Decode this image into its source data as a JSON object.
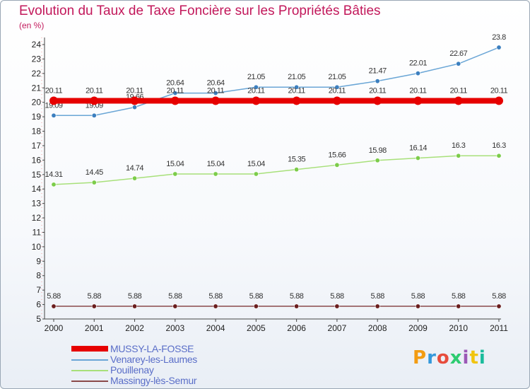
{
  "chart_data": {
    "type": "line",
    "title": "Evolution du Taux de Taxe Foncière sur les Propriétés Bâties",
    "unit_label": "(en %)",
    "xlabel": "",
    "ylabel": "",
    "ylim": [
      5,
      24
    ],
    "yticks": [
      5,
      6,
      7,
      8,
      9,
      10,
      11,
      12,
      13,
      14,
      15,
      16,
      17,
      18,
      19,
      20,
      21,
      22,
      23,
      24
    ],
    "x": [
      "2000",
      "2001",
      "2002",
      "2003",
      "2004",
      "2005",
      "2006",
      "2007",
      "2008",
      "2009",
      "2010",
      "2011"
    ],
    "series": [
      {
        "name": "Venarey-les-Laumes",
        "color": "#6aa6d6",
        "marker": "#3c7fbf",
        "width": 1.5,
        "msize": 3.2,
        "values": [
          19.09,
          19.09,
          19.66,
          20.64,
          20.64,
          21.05,
          21.05,
          21.05,
          21.47,
          22.01,
          22.67,
          23.8
        ],
        "labels": [
          "19.09",
          "19.09",
          "19.66",
          "20.64",
          "20.64",
          "21.05",
          "21.05",
          "21.05",
          "21.47",
          "22.01",
          "22.67",
          "23.8"
        ]
      },
      {
        "name": "Pouillenay",
        "color": "#a8e07a",
        "marker": "#7ccc4a",
        "width": 1.5,
        "msize": 3.2,
        "values": [
          14.31,
          14.45,
          14.74,
          15.04,
          15.04,
          15.04,
          15.35,
          15.66,
          15.98,
          16.14,
          16.3,
          16.3
        ],
        "labels": [
          "14.31",
          "14.45",
          "14.74",
          "15.04",
          "15.04",
          "15.04",
          "15.35",
          "15.66",
          "15.98",
          "16.14",
          "16.3",
          "16.3"
        ]
      },
      {
        "name": "Massingy-lès-Semur",
        "color": "#8a4a4a",
        "marker": "#6a1e1e",
        "width": 1.5,
        "msize": 3.2,
        "values": [
          5.88,
          5.88,
          5.88,
          5.88,
          5.88,
          5.88,
          5.88,
          5.88,
          5.88,
          5.88,
          5.88,
          5.88
        ],
        "labels": [
          "5.88",
          "5.88",
          "5.88",
          "5.88",
          "5.88",
          "5.88",
          "5.88",
          "5.88",
          "5.88",
          "5.88",
          "5.88",
          "5.88"
        ]
      },
      {
        "name": "MUSSY-LA-FOSSE",
        "color": "#e60000",
        "marker": "#e60000",
        "width": 8,
        "msize": 6,
        "values": [
          20.11,
          20.11,
          20.11,
          20.11,
          20.11,
          20.11,
          20.11,
          20.11,
          20.11,
          20.11,
          20.11,
          20.11
        ],
        "labels": [
          "20.11",
          "20.11",
          "20.11",
          "20.11",
          "20.11",
          "20.11",
          "20.11",
          "20.11",
          "20.11",
          "20.11",
          "20.11",
          "20.11"
        ]
      }
    ],
    "legend": {
      "position": "bottom-left",
      "order": [
        "MUSSY-LA-FOSSE",
        "Venarey-les-Laumes",
        "Pouillenay",
        "Massingy-lès-Semur"
      ]
    },
    "grid": false
  },
  "logo": {
    "text": "Proxiti",
    "colors": [
      "#f39c12",
      "#3498db",
      "#e74c3c",
      "#2ecc71",
      "#9b59b6",
      "#f1c40f",
      "#1abc9c"
    ]
  }
}
